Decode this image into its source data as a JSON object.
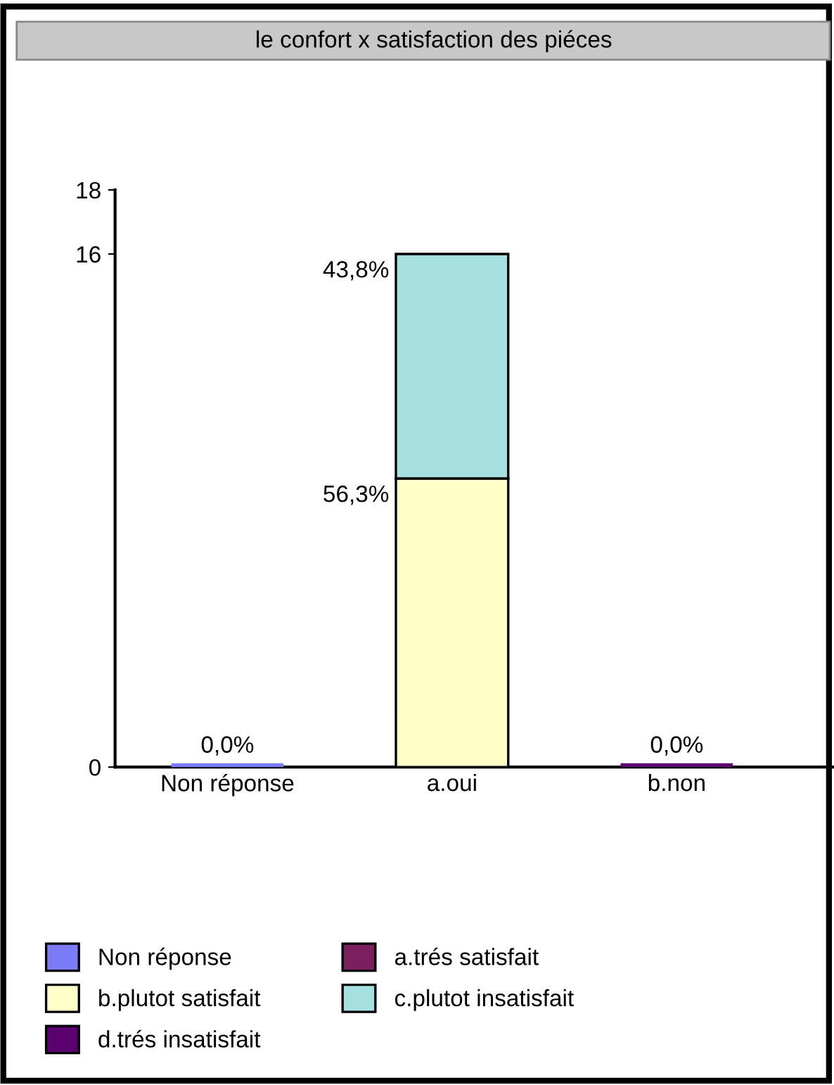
{
  "chart_data": {
    "type": "bar",
    "stacked": true,
    "title": "le confort x satisfaction des piéces",
    "categories": [
      "Non réponse",
      "a.oui",
      "b.non"
    ],
    "ylim": [
      0,
      18
    ],
    "yticks": [
      0,
      16,
      18
    ],
    "grid": false,
    "legend": "bottom",
    "series": [
      {
        "name": "Non réponse",
        "color": "#7b7bf7",
        "values": [
          0,
          null,
          null
        ]
      },
      {
        "name": "a.trés satisfait",
        "color": "#7b1f5f",
        "values": [
          null,
          null,
          null
        ]
      },
      {
        "name": "b.plutot satisfait",
        "color": "#ffffc8",
        "values": [
          null,
          9,
          null
        ]
      },
      {
        "name": "c.plutot insatisfait",
        "color": "#a6e0e0",
        "values": [
          null,
          7,
          null
        ]
      },
      {
        "name": "d.trés insatisfait",
        "color": "#5a0070",
        "values": [
          null,
          null,
          0
        ]
      }
    ],
    "annotations": [
      {
        "text": "0,0%",
        "x": "Non réponse",
        "y": 0
      },
      {
        "text": "56,3%",
        "x": "a.oui",
        "y": 9
      },
      {
        "text": "43,8%",
        "x": "a.oui",
        "y": 16
      },
      {
        "text": "0,0%",
        "x": "b.non",
        "y": 0
      }
    ]
  }
}
